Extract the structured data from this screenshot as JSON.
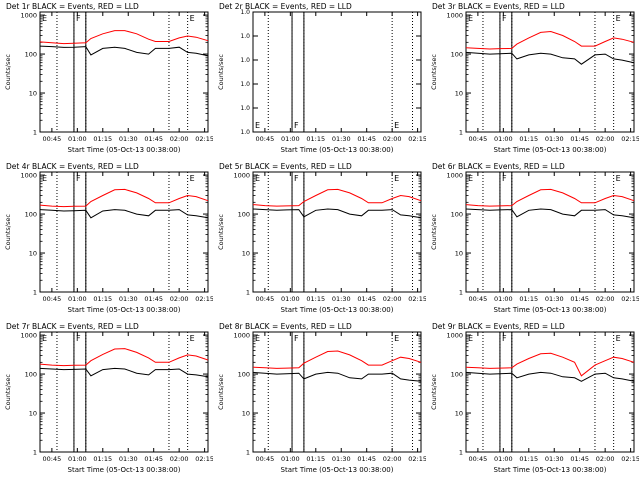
{
  "colors": {
    "events": "#000000",
    "lld": "#ff0000",
    "axes": "#000000",
    "background": "#ffffff"
  },
  "chart_data": [
    {
      "type": "line",
      "title": "Det 1r BLACK = Events, RED = LLD",
      "xlabel": "Start Time (05-Oct-13 00:38:00)",
      "ylabel": "Counts/sec",
      "log_y": true,
      "grid": false,
      "xlim": [
        "00:38",
        "02:17"
      ],
      "ylim": [
        1,
        1200
      ],
      "x_ticks": [
        "00:45",
        "01:00",
        "01:15",
        "01:30",
        "01:45",
        "02:00",
        "02:15"
      ],
      "y_ticks": [
        "1",
        "10",
        "100",
        "1000"
      ],
      "solid_vlines": [
        "00:58",
        "01:05"
      ],
      "dotted_vlines": [
        "00:48",
        "00:58",
        "01:05",
        "01:54",
        "02:05"
      ],
      "markers": [
        {
          "text": "E",
          "x": "00:38"
        },
        {
          "text": "F",
          "x": "00:58"
        },
        {
          "text": "E",
          "x": "02:05"
        }
      ],
      "time_points": [
        "00:38",
        "00:45",
        "00:52",
        "00:58",
        "01:05",
        "01:08",
        "01:15",
        "01:22",
        "01:28",
        "01:35",
        "01:42",
        "01:46",
        "01:54",
        "02:00",
        "02:05",
        "02:10",
        "02:17"
      ],
      "series": [
        {
          "name": "LLD",
          "values": [
            205,
            195,
            185,
            190,
            195,
            250,
            330,
            400,
            400,
            330,
            240,
            210,
            210,
            260,
            290,
            270,
            220
          ]
        },
        {
          "name": "Events",
          "values": [
            160,
            155,
            148,
            150,
            155,
            95,
            140,
            150,
            140,
            110,
            100,
            140,
            140,
            150,
            110,
            105,
            90
          ]
        }
      ]
    },
    {
      "type": "line",
      "title": "Det 2r BLACK = Events, RED = LLD",
      "xlabel": "Start Time (05-Oct-13 00:38:00)",
      "ylabel": "Counts/sec",
      "log_y": true,
      "grid": false,
      "xlim": [
        "00:38",
        "02:17"
      ],
      "ylim": [
        1,
        1.000001
      ],
      "x_ticks": [
        "00:45",
        "01:00",
        "01:15",
        "01:30",
        "01:45",
        "02:00",
        "02:15"
      ],
      "y_ticks": [
        "1.0",
        "1.0",
        "1.0",
        "1.0",
        "1.0",
        "1.0"
      ],
      "solid_vlines": [
        "01:01",
        "01:08"
      ],
      "dotted_vlines": [
        "00:47",
        "01:01",
        "01:08",
        "02:00",
        "02:12"
      ],
      "markers": [
        {
          "text": "E",
          "x": "00:38"
        },
        {
          "text": "F",
          "x": "01:01"
        },
        {
          "text": "E",
          "x": "02:00"
        }
      ],
      "time_points": [],
      "series": []
    },
    {
      "type": "line",
      "title": "Det 3r BLACK = Events, RED = LLD",
      "xlabel": "Start Time (05-Oct-13 00:38:00)",
      "ylabel": "Counts/sec",
      "log_y": true,
      "grid": false,
      "xlim": [
        "00:38",
        "02:17"
      ],
      "ylim": [
        1,
        1200
      ],
      "x_ticks": [
        "00:45",
        "01:00",
        "01:15",
        "01:30",
        "01:45",
        "02:00",
        "02:15"
      ],
      "y_ticks": [
        "1",
        "10",
        "100",
        "1000"
      ],
      "solid_vlines": [
        "00:58",
        "01:05"
      ],
      "dotted_vlines": [
        "00:48",
        "00:58",
        "01:05",
        "01:54",
        "02:05"
      ],
      "markers": [
        {
          "text": "E",
          "x": "00:38"
        },
        {
          "text": "F",
          "x": "00:58"
        },
        {
          "text": "E",
          "x": "02:05"
        }
      ],
      "time_points": [
        "00:38",
        "00:45",
        "00:52",
        "00:58",
        "01:05",
        "01:08",
        "01:15",
        "01:22",
        "01:28",
        "01:35",
        "01:42",
        "01:46",
        "01:54",
        "02:00",
        "02:05",
        "02:10",
        "02:17"
      ],
      "series": [
        {
          "name": "LLD",
          "values": [
            145,
            140,
            135,
            138,
            140,
            180,
            260,
            360,
            380,
            300,
            210,
            160,
            160,
            210,
            260,
            240,
            200
          ]
        },
        {
          "name": "Events",
          "values": [
            110,
            105,
            100,
            102,
            105,
            75,
            95,
            105,
            100,
            80,
            75,
            55,
            95,
            100,
            75,
            70,
            60
          ]
        }
      ]
    },
    {
      "type": "line",
      "title": "Det 4r BLACK = Events, RED = LLD",
      "xlabel": "Start Time (05-Oct-13 00:38:00)",
      "ylabel": "Counts/sec",
      "log_y": true,
      "grid": false,
      "xlim": [
        "00:38",
        "02:17"
      ],
      "ylim": [
        1,
        1200
      ],
      "x_ticks": [
        "00:45",
        "01:00",
        "01:15",
        "01:30",
        "01:45",
        "02:00",
        "02:15"
      ],
      "y_ticks": [
        "1",
        "10",
        "100",
        "1000"
      ],
      "solid_vlines": [
        "00:58",
        "01:05"
      ],
      "dotted_vlines": [
        "00:48",
        "00:58",
        "01:05",
        "01:54",
        "02:05"
      ],
      "markers": [
        {
          "text": "E",
          "x": "00:38"
        },
        {
          "text": "F",
          "x": "00:58"
        },
        {
          "text": "E",
          "x": "02:05"
        }
      ],
      "time_points": [
        "00:38",
        "00:45",
        "00:52",
        "00:58",
        "01:05",
        "01:08",
        "01:15",
        "01:22",
        "01:28",
        "01:35",
        "01:42",
        "01:46",
        "01:54",
        "02:00",
        "02:05",
        "02:10",
        "02:17"
      ],
      "series": [
        {
          "name": "LLD",
          "values": [
            170,
            160,
            155,
            158,
            160,
            210,
            300,
            420,
            430,
            350,
            250,
            195,
            195,
            250,
            300,
            280,
            220
          ]
        },
        {
          "name": "Events",
          "values": [
            130,
            125,
            120,
            122,
            125,
            80,
            120,
            130,
            125,
            100,
            90,
            125,
            125,
            130,
            95,
            90,
            80
          ]
        }
      ]
    },
    {
      "type": "line",
      "title": "Det 5r BLACK = Events, RED = LLD",
      "xlabel": "Start Time (05-Oct-13 00:38:00)",
      "ylabel": "Counts/sec",
      "log_y": true,
      "grid": false,
      "xlim": [
        "00:38",
        "02:17"
      ],
      "ylim": [
        1,
        1200
      ],
      "x_ticks": [
        "00:45",
        "01:00",
        "01:15",
        "01:30",
        "01:45",
        "02:00",
        "02:15"
      ],
      "y_ticks": [
        "1",
        "10",
        "100",
        "1000"
      ],
      "solid_vlines": [
        "01:01",
        "01:08"
      ],
      "dotted_vlines": [
        "00:47",
        "01:01",
        "01:08",
        "02:00",
        "02:12"
      ],
      "markers": [
        {
          "text": "E",
          "x": "00:38"
        },
        {
          "text": "F",
          "x": "01:01"
        },
        {
          "text": "E",
          "x": "02:00"
        }
      ],
      "time_points": [
        "00:38",
        "00:45",
        "00:52",
        "00:58",
        "01:05",
        "01:08",
        "01:15",
        "01:22",
        "01:28",
        "01:35",
        "01:42",
        "01:46",
        "01:54",
        "02:00",
        "02:05",
        "02:10",
        "02:17"
      ],
      "series": [
        {
          "name": "LLD",
          "values": [
            175,
            165,
            160,
            162,
            165,
            210,
            300,
            420,
            430,
            350,
            250,
            195,
            195,
            250,
            300,
            280,
            220
          ]
        },
        {
          "name": "Events",
          "values": [
            135,
            130,
            125,
            128,
            130,
            85,
            125,
            135,
            130,
            100,
            90,
            125,
            125,
            130,
            95,
            90,
            80
          ]
        }
      ]
    },
    {
      "type": "line",
      "title": "Det 6r BLACK = Events, RED = LLD",
      "xlabel": "Start Time (05-Oct-13 00:38:00)",
      "ylabel": "Counts/sec",
      "log_y": true,
      "grid": false,
      "xlim": [
        "00:38",
        "02:17"
      ],
      "ylim": [
        1,
        1200
      ],
      "x_ticks": [
        "00:45",
        "01:00",
        "01:15",
        "01:30",
        "01:45",
        "02:00",
        "02:15"
      ],
      "y_ticks": [
        "1",
        "10",
        "100",
        "1000"
      ],
      "solid_vlines": [
        "00:58",
        "01:05"
      ],
      "dotted_vlines": [
        "00:48",
        "00:58",
        "01:05",
        "01:54",
        "02:05"
      ],
      "markers": [
        {
          "text": "E",
          "x": "00:38"
        },
        {
          "text": "F",
          "x": "00:58"
        },
        {
          "text": "E",
          "x": "02:05"
        }
      ],
      "time_points": [
        "00:38",
        "00:45",
        "00:52",
        "00:58",
        "01:05",
        "01:08",
        "01:15",
        "01:22",
        "01:28",
        "01:35",
        "01:42",
        "01:46",
        "01:54",
        "02:00",
        "02:05",
        "02:10",
        "02:17"
      ],
      "series": [
        {
          "name": "LLD",
          "values": [
            175,
            165,
            160,
            162,
            165,
            210,
            300,
            420,
            430,
            350,
            250,
            195,
            195,
            250,
            300,
            280,
            220
          ]
        },
        {
          "name": "Events",
          "values": [
            135,
            130,
            125,
            128,
            130,
            85,
            125,
            135,
            130,
            100,
            90,
            125,
            125,
            130,
            95,
            90,
            80
          ]
        }
      ]
    },
    {
      "type": "line",
      "title": "Det 7r BLACK = Events, RED = LLD",
      "xlabel": "Start Time (05-Oct-13 00:38:00)",
      "ylabel": "Counts/sec",
      "log_y": true,
      "grid": false,
      "xlim": [
        "00:38",
        "02:17"
      ],
      "ylim": [
        1,
        1200
      ],
      "x_ticks": [
        "00:45",
        "01:00",
        "01:15",
        "01:30",
        "01:45",
        "02:00",
        "02:15"
      ],
      "y_ticks": [
        "1",
        "10",
        "100",
        "1000"
      ],
      "solid_vlines": [
        "00:58",
        "01:05"
      ],
      "dotted_vlines": [
        "00:48",
        "00:58",
        "01:05",
        "01:54",
        "02:05"
      ],
      "markers": [
        {
          "text": "E",
          "x": "00:38"
        },
        {
          "text": "F",
          "x": "00:58"
        },
        {
          "text": "E",
          "x": "02:05"
        }
      ],
      "time_points": [
        "00:38",
        "00:45",
        "00:52",
        "00:58",
        "01:05",
        "01:08",
        "01:15",
        "01:22",
        "01:28",
        "01:35",
        "01:42",
        "01:46",
        "01:54",
        "02:00",
        "02:05",
        "02:10",
        "02:17"
      ],
      "series": [
        {
          "name": "LLD",
          "values": [
            180,
            170,
            165,
            168,
            170,
            220,
            320,
            440,
            450,
            360,
            260,
            200,
            200,
            260,
            310,
            290,
            230
          ]
        },
        {
          "name": "Events",
          "values": [
            140,
            135,
            130,
            132,
            135,
            90,
            130,
            140,
            135,
            105,
            95,
            130,
            130,
            135,
            100,
            95,
            85
          ]
        }
      ]
    },
    {
      "type": "line",
      "title": "Det 8r BLACK = Events, RED = LLD",
      "xlabel": "Start Time (05-Oct-13 00:38:00)",
      "ylabel": "Counts/sec",
      "log_y": true,
      "grid": false,
      "xlim": [
        "00:38",
        "02:17"
      ],
      "ylim": [
        1,
        1200
      ],
      "x_ticks": [
        "00:45",
        "01:00",
        "01:15",
        "01:30",
        "01:45",
        "02:00",
        "02:15"
      ],
      "y_ticks": [
        "1",
        "10",
        "100",
        "1000"
      ],
      "solid_vlines": [
        "01:01",
        "01:08"
      ],
      "dotted_vlines": [
        "00:47",
        "01:01",
        "01:08",
        "02:00",
        "02:12"
      ],
      "markers": [
        {
          "text": "E",
          "x": "00:38"
        },
        {
          "text": "F",
          "x": "01:01"
        },
        {
          "text": "E",
          "x": "02:00"
        }
      ],
      "time_points": [
        "00:38",
        "00:45",
        "00:52",
        "00:58",
        "01:05",
        "01:08",
        "01:15",
        "01:22",
        "01:28",
        "01:35",
        "01:42",
        "01:46",
        "01:54",
        "02:00",
        "02:05",
        "02:10",
        "02:17"
      ],
      "series": [
        {
          "name": "LLD",
          "values": [
            150,
            145,
            140,
            142,
            145,
            190,
            270,
            380,
            390,
            310,
            220,
            170,
            170,
            220,
            270,
            250,
            200
          ]
        },
        {
          "name": "Events",
          "values": [
            110,
            105,
            100,
            102,
            105,
            75,
            100,
            110,
            105,
            80,
            75,
            100,
            100,
            105,
            75,
            70,
            65
          ]
        }
      ]
    },
    {
      "type": "line",
      "title": "Det 9r BLACK = Events, RED = LLD",
      "xlabel": "Start Time (05-Oct-13 00:38:00)",
      "ylabel": "Counts/sec",
      "log_y": true,
      "grid": false,
      "xlim": [
        "00:38",
        "02:17"
      ],
      "ylim": [
        1,
        1200
      ],
      "x_ticks": [
        "00:45",
        "01:00",
        "01:15",
        "01:30",
        "01:45",
        "02:00",
        "02:15"
      ],
      "y_ticks": [
        "1",
        "10",
        "100",
        "1000"
      ],
      "solid_vlines": [
        "00:58",
        "01:05"
      ],
      "dotted_vlines": [
        "00:48",
        "00:58",
        "01:05",
        "01:54",
        "02:05"
      ],
      "markers": [
        {
          "text": "E",
          "x": "00:38"
        },
        {
          "text": "F",
          "x": "00:58"
        },
        {
          "text": "E",
          "x": "02:05"
        }
      ],
      "time_points": [
        "00:38",
        "00:45",
        "00:52",
        "00:58",
        "01:05",
        "01:08",
        "01:15",
        "01:22",
        "01:28",
        "01:35",
        "01:42",
        "01:46",
        "01:54",
        "02:00",
        "02:05",
        "02:10",
        "02:17"
      ],
      "series": [
        {
          "name": "LLD",
          "values": [
            150,
            145,
            140,
            142,
            145,
            180,
            250,
            330,
            340,
            270,
            200,
            90,
            170,
            220,
            270,
            250,
            200
          ]
        },
        {
          "name": "Events",
          "values": [
            110,
            105,
            100,
            102,
            105,
            80,
            100,
            110,
            105,
            85,
            80,
            65,
            100,
            105,
            80,
            75,
            65
          ]
        }
      ]
    }
  ]
}
